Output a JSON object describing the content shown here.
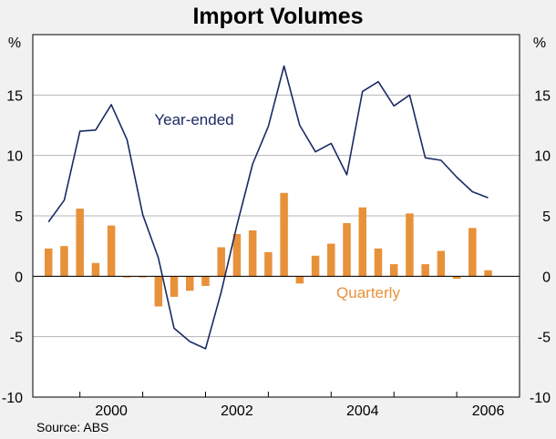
{
  "chart_data": {
    "type": "bar+line",
    "title": "Import Volumes",
    "y_unit_left": "%",
    "y_unit_right": "%",
    "ylim": [
      -10,
      20
    ],
    "yticks": [
      -10,
      -5,
      0,
      5,
      10,
      15
    ],
    "ytick_labels": [
      "-10",
      "-5",
      "0",
      "5",
      "10",
      "15"
    ],
    "xlim": [
      1998.75,
      2006.5
    ],
    "xtick_positions": [
      2000,
      2002,
      2004,
      2006
    ],
    "xtick_labels": [
      "2000",
      "2002",
      "2004",
      "2006"
    ],
    "source": "Source: ABS",
    "series": [
      {
        "name": "Quarterly",
        "kind": "bar",
        "color": "#e8913b",
        "x": [
          1999.0,
          1999.25,
          1999.5,
          1999.75,
          2000.0,
          2000.25,
          2000.5,
          2000.75,
          2001.0,
          2001.25,
          2001.5,
          2001.75,
          2002.0,
          2002.25,
          2002.5,
          2002.75,
          2003.0,
          2003.25,
          2003.5,
          2003.75,
          2004.0,
          2004.25,
          2004.5,
          2004.75,
          2005.0,
          2005.25,
          2005.5,
          2005.75,
          2006.0
        ],
        "values": [
          2.3,
          2.5,
          5.6,
          1.1,
          4.2,
          -0.1,
          -0.1,
          -2.5,
          -1.7,
          -1.2,
          -0.8,
          2.4,
          3.5,
          3.8,
          2.0,
          6.9,
          -0.6,
          1.7,
          2.7,
          4.4,
          5.7,
          2.3,
          1.0,
          5.2,
          1.0,
          2.1,
          -0.2,
          4.0,
          0.5
        ]
      },
      {
        "name": "Year-ended",
        "kind": "line",
        "color": "#1b2a63",
        "x": [
          1999.0,
          1999.25,
          1999.5,
          1999.75,
          2000.0,
          2000.25,
          2000.5,
          2000.75,
          2001.0,
          2001.25,
          2001.5,
          2001.75,
          2002.0,
          2002.25,
          2002.5,
          2002.75,
          2003.0,
          2003.25,
          2003.5,
          2003.75,
          2004.0,
          2004.25,
          2004.5,
          2004.75,
          2005.0,
          2005.25,
          2005.5,
          2005.75,
          2006.0
        ],
        "values": [
          4.5,
          6.3,
          12.0,
          12.1,
          14.2,
          11.3,
          5.1,
          1.5,
          -4.3,
          -5.4,
          -6.0,
          -1.3,
          4.2,
          9.3,
          12.4,
          17.4,
          12.5,
          10.3,
          11.0,
          8.4,
          15.3,
          16.1,
          14.1,
          15.0,
          9.8,
          9.6,
          8.2,
          7.0,
          6.5
        ]
      }
    ]
  },
  "labels": {
    "year_ended": "Year-ended",
    "quarterly": "Quarterly"
  }
}
